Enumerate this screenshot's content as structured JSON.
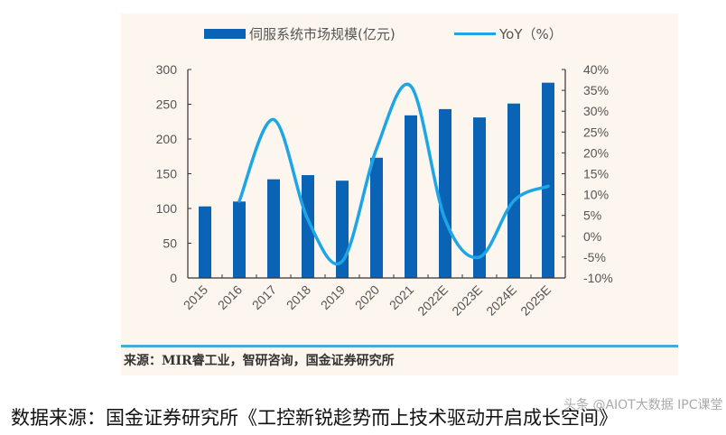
{
  "chart_data": {
    "type": "bar",
    "title": "",
    "categories": [
      "2015",
      "2016",
      "2017",
      "2018",
      "2019",
      "2020",
      "2021",
      "2022E",
      "2023E",
      "2024E",
      "2025E"
    ],
    "series": [
      {
        "name": "伺服系统市场规模(亿元)",
        "type": "bar",
        "axis": "left",
        "color": "#0b63b5",
        "values": [
          103,
          110,
          142,
          148,
          140,
          173,
          234,
          243,
          231,
          251,
          281
        ]
      },
      {
        "name": "YoY（%）",
        "type": "line",
        "axis": "right",
        "color": "#1ea5e6",
        "values": [
          null,
          8.4,
          28,
          4,
          -6,
          21,
          36,
          4,
          -5,
          8.5,
          12
        ]
      }
    ],
    "left_axis": {
      "ylim": [
        0,
        300
      ],
      "ticks": [
        "0",
        "50",
        "100",
        "150",
        "200",
        "250",
        "300"
      ]
    },
    "right_axis": {
      "ylim": [
        -10,
        40
      ],
      "ticks": [
        "-10%",
        "-5%",
        "0%",
        "5%",
        "10%",
        "15%",
        "20%",
        "25%",
        "30%",
        "35%",
        "40%"
      ]
    },
    "xlabel": "",
    "ylabel": "",
    "grid": false,
    "legend_position": "top"
  },
  "legend": {
    "bar_label": "伺服系统市场规模(亿元)",
    "line_label": "YoY（%）"
  },
  "source_note": "来源：MIR睿工业，智研咨询，国金证券研究所",
  "caption": "数据来源：国金证券研究所《工控新锐趁势而上技术驱动开启成长空间》",
  "watermark": "头条 @AIOT大数据 IPC课堂"
}
